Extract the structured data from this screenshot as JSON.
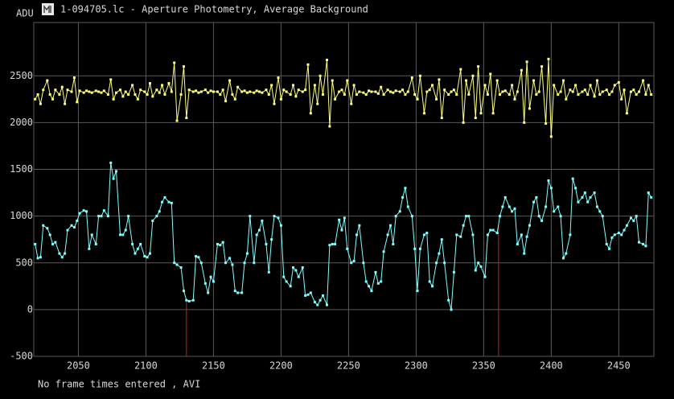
{
  "window_title": "1-094705.lc - Aperture Photometry, Average Background",
  "status": "No frame times entered , AVI",
  "chart_data": {
    "type": "line",
    "ylabel": "ADU",
    "x": [
      2018,
      2020,
      2022,
      2024,
      2027,
      2029,
      2031,
      2033,
      2036,
      2038,
      2040,
      2042,
      2045,
      2047,
      2049,
      2051,
      2054,
      2056,
      2058,
      2060,
      2063,
      2065,
      2067,
      2069,
      2072,
      2074,
      2076,
      2078,
      2081,
      2083,
      2085,
      2087,
      2090,
      2092,
      2094,
      2096,
      2099,
      2101,
      2103,
      2105,
      2108,
      2110,
      2112,
      2114,
      2117,
      2119,
      2121,
      2123,
      2126,
      2128,
      2130,
      2132,
      2135,
      2137,
      2139,
      2141,
      2144,
      2146,
      2148,
      2150,
      2153,
      2155,
      2157,
      2159,
      2162,
      2164,
      2166,
      2168,
      2171,
      2173,
      2175,
      2177,
      2180,
      2182,
      2184,
      2186,
      2189,
      2191,
      2193,
      2195,
      2198,
      2200,
      2202,
      2204,
      2207,
      2209,
      2211,
      2213,
      2216,
      2218,
      2220,
      2222,
      2225,
      2227,
      2229,
      2231,
      2234,
      2236,
      2238,
      2240,
      2243,
      2245,
      2247,
      2249,
      2252,
      2254,
      2256,
      2258,
      2261,
      2263,
      2265,
      2267,
      2270,
      2272,
      2274,
      2276,
      2279,
      2281,
      2283,
      2285,
      2288,
      2290,
      2292,
      2294,
      2297,
      2299,
      2301,
      2303,
      2306,
      2308,
      2310,
      2312,
      2315,
      2317,
      2319,
      2321,
      2324,
      2326,
      2328,
      2330,
      2333,
      2335,
      2337,
      2339,
      2342,
      2344,
      2346,
      2348,
      2351,
      2353,
      2355,
      2357,
      2360,
      2362,
      2364,
      2366,
      2369,
      2371,
      2373,
      2375,
      2378,
      2380,
      2382,
      2384,
      2387,
      2389,
      2391,
      2393,
      2396,
      2398,
      2400,
      2402,
      2405,
      2407,
      2409,
      2411,
      2414,
      2416,
      2418,
      2420,
      2423,
      2425,
      2427,
      2429,
      2432,
      2434,
      2436,
      2438,
      2441,
      2443,
      2445,
      2447,
      2450,
      2452,
      2454,
      2456,
      2459,
      2461,
      2463,
      2465,
      2468,
      2470,
      2472,
      2474
    ],
    "series": [
      {
        "color": "#ffff80",
        "values": [
          2250,
          2300,
          2200,
          2350,
          2450,
          2300,
          2250,
          2350,
          2300,
          2380,
          2200,
          2350,
          2330,
          2480,
          2220,
          2340,
          2320,
          2340,
          2330,
          2320,
          2340,
          2330,
          2320,
          2340,
          2300,
          2460,
          2250,
          2320,
          2350,
          2280,
          2330,
          2300,
          2400,
          2300,
          2250,
          2350,
          2330,
          2300,
          2420,
          2280,
          2350,
          2320,
          2400,
          2300,
          2420,
          2330,
          2640,
          2020,
          2300,
          2600,
          2050,
          2350,
          2330,
          2340,
          2320,
          2330,
          2350,
          2320,
          2340,
          2330,
          2330,
          2300,
          2350,
          2230,
          2450,
          2300,
          2250,
          2380,
          2330,
          2340,
          2320,
          2330,
          2320,
          2340,
          2330,
          2320,
          2350,
          2300,
          2400,
          2200,
          2480,
          2250,
          2350,
          2330,
          2300,
          2400,
          2280,
          2350,
          2330,
          2350,
          2620,
          2100,
          2400,
          2200,
          2500,
          2300,
          2670,
          1960,
          2450,
          2250,
          2330,
          2350,
          2300,
          2450,
          2200,
          2400,
          2300,
          2330,
          2320,
          2300,
          2340,
          2330,
          2330,
          2310,
          2380,
          2300,
          2350,
          2330,
          2320,
          2340,
          2330,
          2350,
          2300,
          2330,
          2480,
          2300,
          2250,
          2500,
          2100,
          2330,
          2350,
          2400,
          2250,
          2460,
          2050,
          2350,
          2300,
          2330,
          2350,
          2300,
          2570,
          2000,
          2450,
          2300,
          2500,
          2050,
          2600,
          2100,
          2400,
          2300,
          2520,
          2100,
          2450,
          2300,
          2330,
          2340,
          2300,
          2400,
          2250,
          2330,
          2560,
          2000,
          2650,
          2150,
          2450,
          2300,
          2330,
          2600,
          1990,
          2680,
          1850,
          2400,
          2300,
          2330,
          2450,
          2250,
          2350,
          2330,
          2400,
          2300,
          2330,
          2350,
          2300,
          2400,
          2280,
          2450,
          2300,
          2330,
          2350,
          2300,
          2330,
          2400,
          2430,
          2250,
          2350,
          2100,
          2330,
          2350,
          2300,
          2330,
          2450,
          2300,
          2400,
          2300
        ]
      },
      {
        "color": "#80ffff",
        "values": [
          700,
          550,
          560,
          900,
          870,
          800,
          700,
          720,
          600,
          560,
          600,
          850,
          900,
          880,
          950,
          1030,
          1060,
          1050,
          650,
          800,
          700,
          1000,
          1000,
          1060,
          1000,
          1570,
          1400,
          1480,
          800,
          800,
          850,
          1000,
          700,
          600,
          650,
          700,
          570,
          560,
          600,
          950,
          1000,
          1050,
          1150,
          1200,
          1150,
          1140,
          500,
          480,
          450,
          200,
          100,
          90,
          100,
          570,
          560,
          500,
          280,
          180,
          350,
          300,
          700,
          690,
          720,
          500,
          550,
          480,
          200,
          180,
          180,
          500,
          600,
          1000,
          500,
          800,
          850,
          950,
          700,
          400,
          750,
          1000,
          980,
          900,
          350,
          300,
          250,
          450,
          420,
          350,
          450,
          150,
          160,
          180,
          80,
          50,
          100,
          150,
          50,
          690,
          700,
          700,
          960,
          850,
          980,
          650,
          500,
          520,
          800,
          900,
          500,
          300,
          250,
          200,
          400,
          280,
          300,
          620,
          800,
          900,
          700,
          1000,
          1050,
          1200,
          1300,
          1100,
          1000,
          650,
          200,
          650,
          800,
          820,
          300,
          250,
          500,
          600,
          750,
          500,
          100,
          0,
          400,
          800,
          780,
          900,
          1000,
          1000,
          800,
          420,
          500,
          460,
          350,
          800,
          850,
          850,
          820,
          1000,
          1100,
          1200,
          1100,
          1050,
          1080,
          700,
          800,
          600,
          780,
          900,
          1150,
          1200,
          1000,
          950,
          1100,
          1380,
          1300,
          1050,
          1100,
          1000,
          550,
          600,
          800,
          1400,
          1300,
          1150,
          1200,
          1250,
          1150,
          1200,
          1250,
          1100,
          1050,
          1000,
          700,
          650,
          770,
          800,
          820,
          800,
          850,
          900,
          980,
          950,
          1000,
          720,
          700,
          680,
          1250,
          1200
        ]
      }
    ],
    "markers": [
      2130,
      2361
    ],
    "marker_color": "#c82020",
    "xlim": [
      2017,
      2476
    ],
    "ylim": [
      -500,
      3070
    ],
    "xticks": [
      2050,
      2100,
      2150,
      2200,
      2250,
      2300,
      2350,
      2400,
      2450
    ],
    "yticks": [
      -500,
      0,
      500,
      1000,
      1500,
      2000,
      2500
    ],
    "grid": true,
    "grid_color": "#5a5a5a"
  }
}
